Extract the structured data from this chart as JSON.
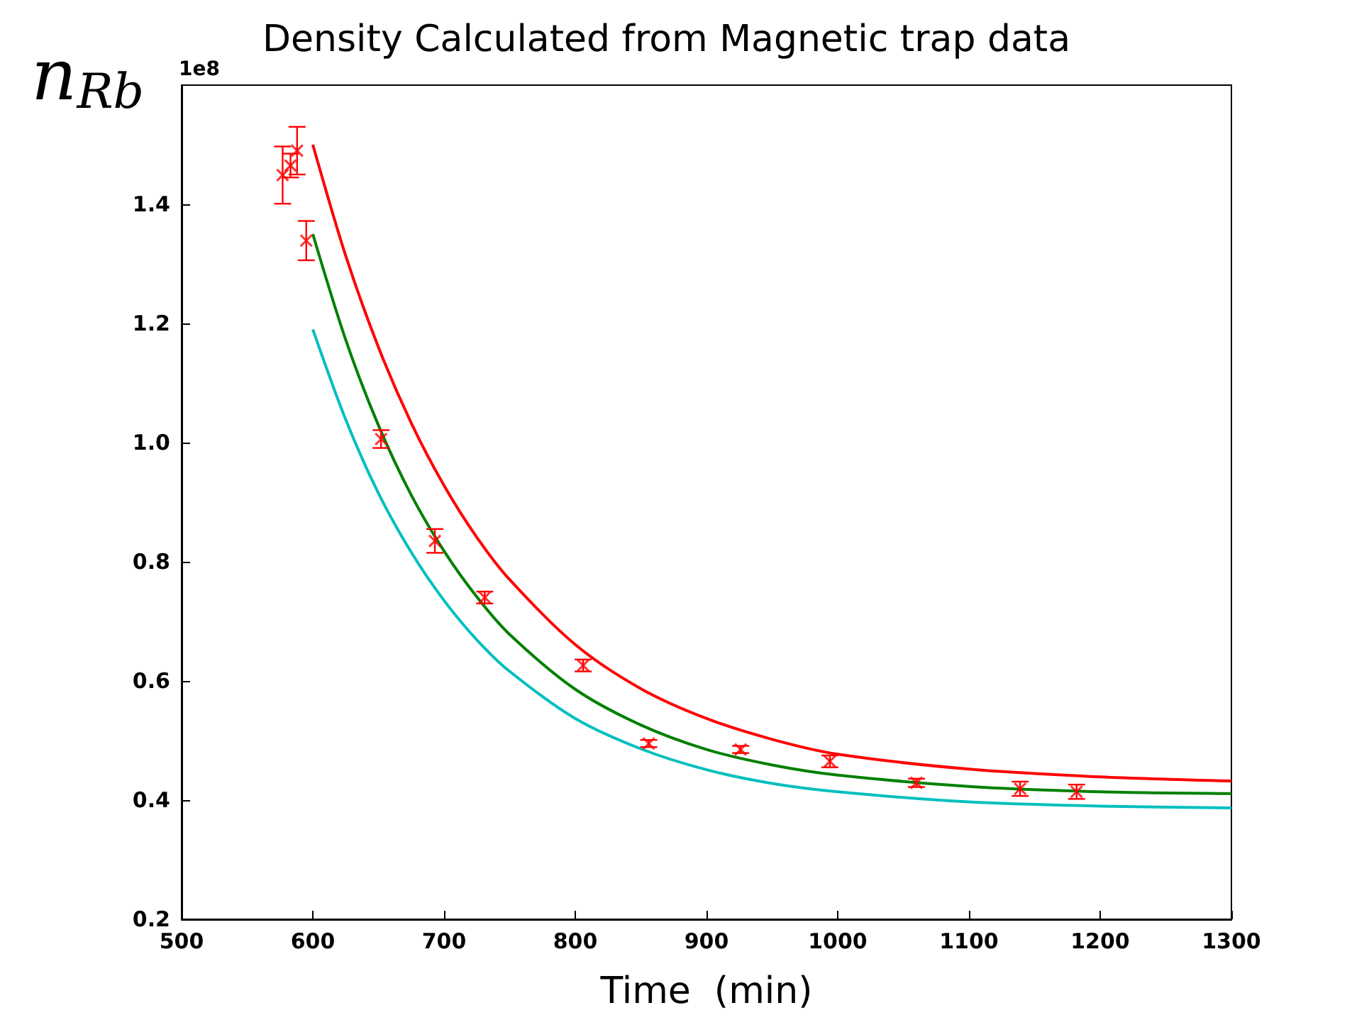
{
  "chart_data": {
    "type": "scatter",
    "title": "Density Calculated from Magnetic trap data",
    "xlabel": "Time  (min)",
    "ylabel": "n$_{Rb}$",
    "annotations": [
      "1e8"
    ],
    "xlim": [
      500,
      1300
    ],
    "xticks": [
      500,
      600,
      700,
      800,
      900,
      1000,
      1100,
      1200,
      1300
    ],
    "ylim": [
      0.2,
      1.6
    ],
    "yticks": [
      0.2,
      0.4,
      0.6,
      0.8,
      {
        "value": 1,
        "label": "1.0"
      },
      1.2,
      1.4
    ],
    "grid": false,
    "series": [
      {
        "color": "#ff0000",
        "marker": "cross",
        "x": [
          577,
          583,
          588,
          595,
          652,
          693,
          731,
          806,
          856,
          926,
          994,
          1060,
          1139,
          1182
        ],
        "values": [
          1.449,
          1.465,
          1.49,
          1.339,
          1.006,
          0.835,
          0.74,
          0.626,
          0.495,
          0.485,
          0.465,
          0.429,
          0.419,
          0.414
        ],
        "errors": [
          0.048,
          0.02,
          0.04,
          0.033,
          0.015,
          0.02,
          0.01,
          0.01,
          0.006,
          0.006,
          0.01,
          0.007,
          0.012,
          0.012
        ]
      },
      {
        "type": "line",
        "color": "#ff0000",
        "marker": "none",
        "x": [
          600,
          625,
          650,
          675,
          700,
          725,
          750,
          800,
          850,
          900,
          950,
          1000,
          1100,
          1200,
          1300
        ],
        "values": [
          1.5,
          1.314,
          1.16,
          1.033,
          0.928,
          0.841,
          0.77,
          0.661,
          0.587,
          0.537,
          0.502,
          0.477,
          0.452,
          0.439,
          0.432
        ]
      },
      {
        "type": "line",
        "color": "#008000",
        "marker": "none",
        "x": [
          600,
          625,
          650,
          675,
          700,
          725,
          750,
          800,
          850,
          900,
          950,
          1000,
          1100,
          1200,
          1300
        ],
        "values": [
          1.35,
          1.173,
          1.029,
          0.912,
          0.818,
          0.741,
          0.678,
          0.586,
          0.526,
          0.485,
          0.459,
          0.442,
          0.423,
          0.414,
          0.411
        ]
      },
      {
        "type": "line",
        "color": "#00bfbf",
        "marker": "none",
        "x": [
          600,
          625,
          650,
          675,
          700,
          725,
          750,
          800,
          850,
          900,
          950,
          1000,
          1100,
          1200,
          1300
        ],
        "values": [
          1.19,
          1.039,
          0.915,
          0.816,
          0.735,
          0.669,
          0.616,
          0.537,
          0.486,
          0.451,
          0.428,
          0.414,
          0.397,
          0.39,
          0.387
        ]
      }
    ]
  }
}
